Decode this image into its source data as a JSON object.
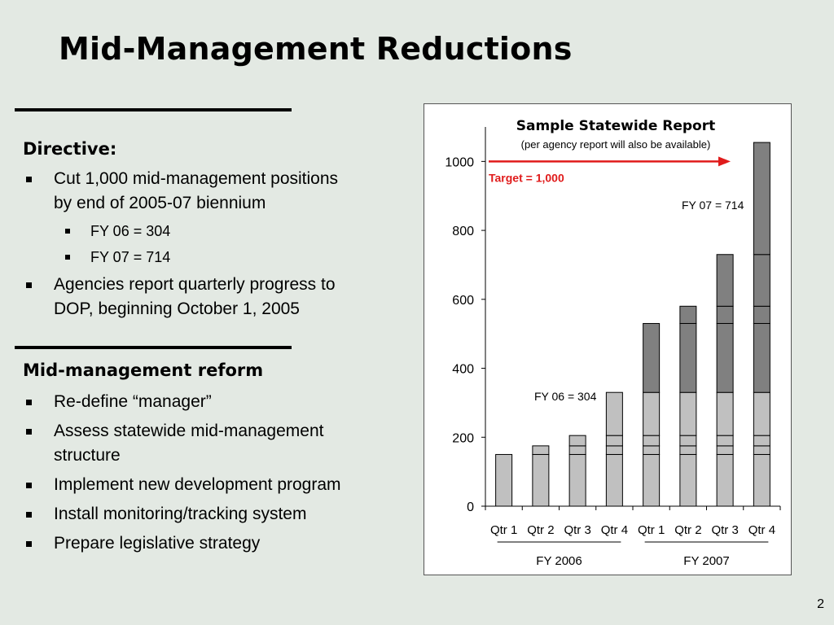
{
  "slide": {
    "title": "Mid-Management Reductions",
    "page_number": "2"
  },
  "directive": {
    "heading": "Directive:",
    "items": [
      {
        "text": "Cut 1,000 mid-management positions by end of 2005-07 biennium",
        "level": 1
      },
      {
        "text": "FY 06 = 304",
        "level": 2
      },
      {
        "text": "FY 07 = 714",
        "level": 2
      },
      {
        "text": "Agencies report quarterly progress to DOP, beginning October 1, 2005",
        "level": 1
      }
    ]
  },
  "reform": {
    "heading": "Mid-management reform",
    "items": [
      {
        "text": "Re-define “manager”",
        "level": 1
      },
      {
        "text": "Assess statewide mid-management structure",
        "level": 1
      },
      {
        "text": "Implement new development program",
        "level": 1
      },
      {
        "text": "Install monitoring/tracking system",
        "level": 1
      },
      {
        "text": "Prepare legislative strategy",
        "level": 1
      }
    ]
  },
  "chart_data": {
    "type": "bar",
    "title": "Sample Statewide Report",
    "subtitle": "(per agency report will also be available)",
    "categories": [
      "Qtr 1",
      "Qtr 2",
      "Qtr 3",
      "Qtr 4",
      "Qtr 1",
      "Qtr 2",
      "Qtr 3",
      "Qtr 4"
    ],
    "groups": [
      {
        "label": "FY 2006",
        "start": 0,
        "end": 3
      },
      {
        "label": "FY 2007",
        "start": 4,
        "end": 7
      }
    ],
    "values": [
      150,
      175,
      205,
      330,
      530,
      580,
      730,
      1055
    ],
    "segments": [
      [
        150
      ],
      [
        150,
        175
      ],
      [
        150,
        175,
        205
      ],
      [
        150,
        175,
        205,
        330
      ],
      [
        150,
        175,
        205,
        330,
        530
      ],
      [
        150,
        175,
        205,
        330,
        530,
        580
      ],
      [
        150,
        175,
        205,
        330,
        530,
        580,
        730
      ],
      [
        150,
        175,
        205,
        330,
        530,
        580,
        730,
        1055
      ]
    ],
    "fy06_last_index": 3,
    "ylim": [
      0,
      1100
    ],
    "yticks": [
      0,
      200,
      400,
      600,
      800,
      1000
    ],
    "target": {
      "value": 1000,
      "label": "Target = 1,000",
      "color": "#e01b1b"
    },
    "annotations": [
      {
        "text": "FY 06 = 304",
        "bar_index": 3,
        "side": "left"
      },
      {
        "text": "FY 07 = 714",
        "bar_index": 7,
        "side": "left"
      }
    ],
    "colors": {
      "fy06_fill": "#c0c0c0",
      "fy07_fill": "#808080",
      "edge": "#000000"
    },
    "grid": false
  }
}
